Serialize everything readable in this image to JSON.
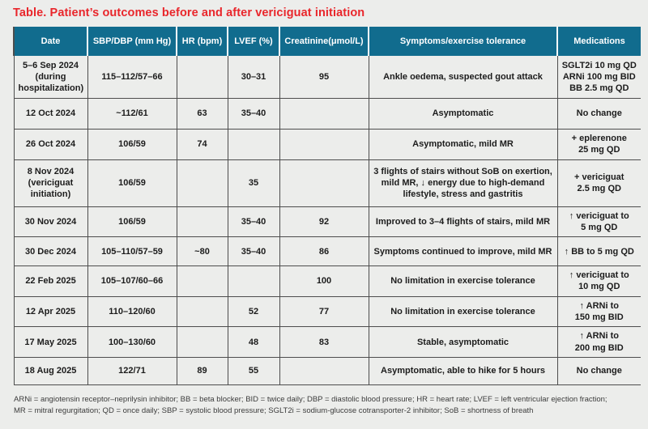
{
  "title": "Table. Patient’s outcomes before and after vericiguat initiation",
  "colors": {
    "page_background": "#ECEDEB",
    "title_red": "#E9262B",
    "header_teal": "#116C8E",
    "header_text": "#FFFFFF",
    "grid_line": "#4D4D4D",
    "body_text": "#1C1C1C"
  },
  "table": {
    "headers": [
      "Date",
      "SBP/DBP (mm Hg)",
      "HR (bpm)",
      "LVEF (%)",
      "Creatinine(μmol/L)",
      "Symptoms/exercise tolerance",
      "Medications"
    ],
    "rows": [
      {
        "date": "5–6 Sep 2024\n(during\nhospitalization)",
        "sbp_dbp": "115–112/57–66",
        "hr": "",
        "lvef": "30–31",
        "creatinine": "95",
        "symptoms": "Ankle oedema, suspected gout attack",
        "medications": "SGLT2i 10 mg QD\nARNi 100 mg BID\nBB 2.5 mg QD"
      },
      {
        "date": "12 Oct 2024",
        "sbp_dbp": "~112/61",
        "hr": "63",
        "lvef": "35–40",
        "creatinine": "",
        "symptoms": "Asymptomatic",
        "medications": "No change"
      },
      {
        "date": "26 Oct 2024",
        "sbp_dbp": "106/59",
        "hr": "74",
        "lvef": "",
        "creatinine": "",
        "symptoms": "Asymptomatic, mild MR",
        "medications": "+ eplerenone\n25 mg QD"
      },
      {
        "date": "8 Nov 2024\n(vericiguat\ninitiation)",
        "sbp_dbp": "106/59",
        "hr": "",
        "lvef": "35",
        "creatinine": "",
        "symptoms": "3 flights of stairs without SoB on exertion, mild MR, ↓ energy due to high-demand lifestyle, stress and gastritis",
        "medications": "+ vericiguat\n2.5 mg QD"
      },
      {
        "date": "30 Nov 2024",
        "sbp_dbp": "106/59",
        "hr": "",
        "lvef": "35–40",
        "creatinine": "92",
        "symptoms": "Improved to 3–4 flights of stairs, mild MR",
        "medications": "↑ vericiguat to\n5 mg QD"
      },
      {
        "date": "30 Dec 2024",
        "sbp_dbp": "105–110/57–59",
        "hr": "~80",
        "lvef": "35–40",
        "creatinine": "86",
        "symptoms": "Symptoms continued to improve, mild MR",
        "medications": "↑ BB to 5 mg QD"
      },
      {
        "date": "22 Feb 2025",
        "sbp_dbp": "105–107/60–66",
        "hr": "",
        "lvef": "",
        "creatinine": "100",
        "symptoms": "No limitation in exercise tolerance",
        "medications": "↑ vericiguat to\n10 mg QD"
      },
      {
        "date": "12 Apr 2025",
        "sbp_dbp": "110–120/60",
        "hr": "",
        "lvef": "52",
        "creatinine": "77",
        "symptoms": "No limitation in exercise tolerance",
        "medications": "↑ ARNi to\n150 mg BID"
      },
      {
        "date": "17 May 2025",
        "sbp_dbp": "100–130/60",
        "hr": "",
        "lvef": "48",
        "creatinine": "83",
        "symptoms": "Stable, asymptomatic",
        "medications": "↑ ARNi to\n200 mg BID"
      },
      {
        "date": "18 Aug 2025",
        "sbp_dbp": "122/71",
        "hr": "89",
        "lvef": "55",
        "creatinine": "",
        "symptoms": "Asymptomatic, able to hike for 5 hours",
        "medications": "No change"
      }
    ]
  },
  "footnote": "ARNi = angiotensin receptor–neprilysin inhibitor; BB = beta blocker; BID = twice daily; DBP = diastolic blood pressure; HR = heart rate; LVEF = left ventricular ejection fraction;\nMR = mitral regurgitation; QD = once daily; SBP = systolic blood pressure; SGLT2i = sodium-glucose cotransporter-2 inhibitor; SoB = shortness of breath"
}
